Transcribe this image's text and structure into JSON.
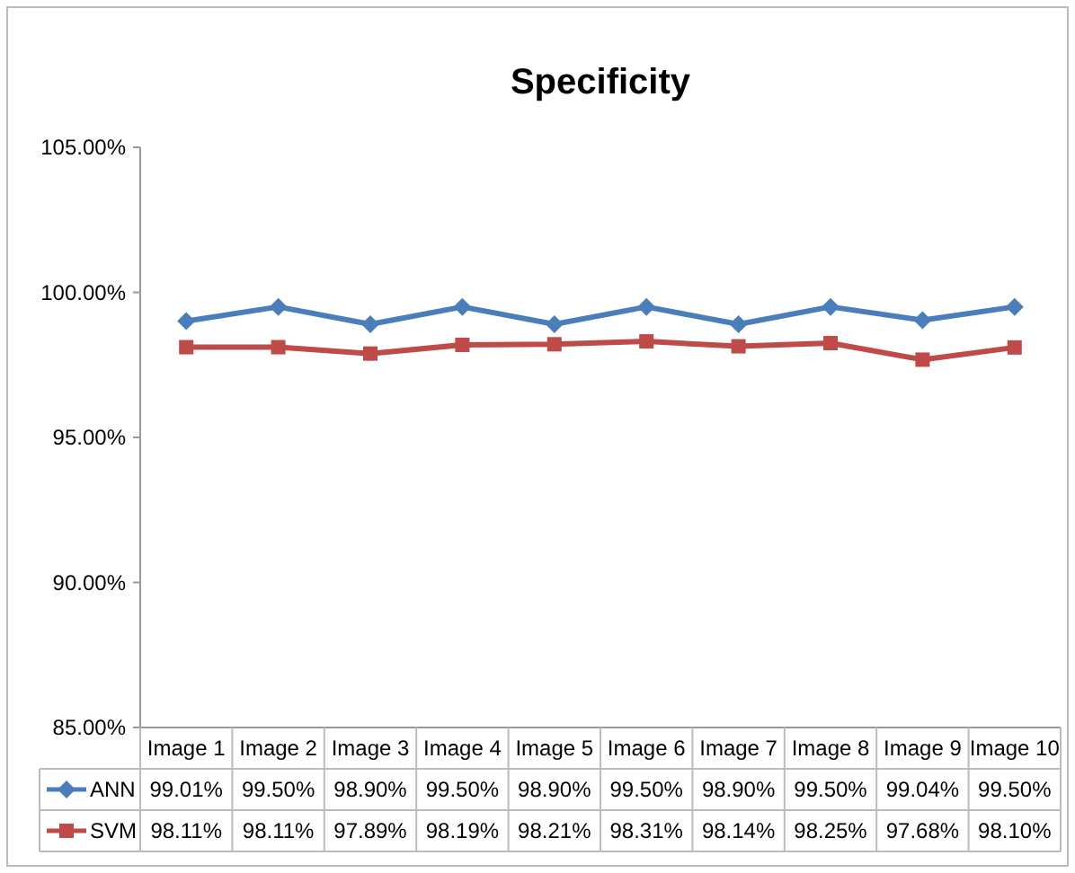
{
  "chart_data": {
    "type": "line",
    "title": "Specificity",
    "categories": [
      "Image 1",
      "Image 2",
      "Image 3",
      "Image 4",
      "Image 5",
      "Image 6",
      "Image 7",
      "Image 8",
      "Image 9",
      "Image 10"
    ],
    "ylim": [
      85,
      105
    ],
    "yticks": [
      {
        "value": 85,
        "label": "85.00%"
      },
      {
        "value": 90,
        "label": "90.00%"
      },
      {
        "value": 95,
        "label": "95.00%"
      },
      {
        "value": 100,
        "label": "100.00%"
      },
      {
        "value": 105,
        "label": "105.00%"
      }
    ],
    "grid": false,
    "legend": "bottom",
    "series": [
      {
        "name": "ANN",
        "color": "#4a7ebb",
        "marker": "diamond",
        "values": [
          99.01,
          99.5,
          98.9,
          99.5,
          98.9,
          99.5,
          98.9,
          99.5,
          99.04,
          99.5
        ],
        "value_labels": [
          "99.01%",
          "99.50%",
          "98.90%",
          "99.50%",
          "98.90%",
          "99.50%",
          "98.90%",
          "99.50%",
          "99.04%",
          "99.50%"
        ]
      },
      {
        "name": "SVM",
        "color": "#be4b48",
        "marker": "square",
        "values": [
          98.11,
          98.11,
          97.89,
          98.19,
          98.21,
          98.31,
          98.14,
          98.25,
          97.68,
          98.1
        ],
        "value_labels": [
          "98.11%",
          "98.11%",
          "97.89%",
          "98.19%",
          "98.21%",
          "98.31%",
          "98.14%",
          "98.25%",
          "97.68%",
          "98.10%"
        ]
      }
    ]
  }
}
